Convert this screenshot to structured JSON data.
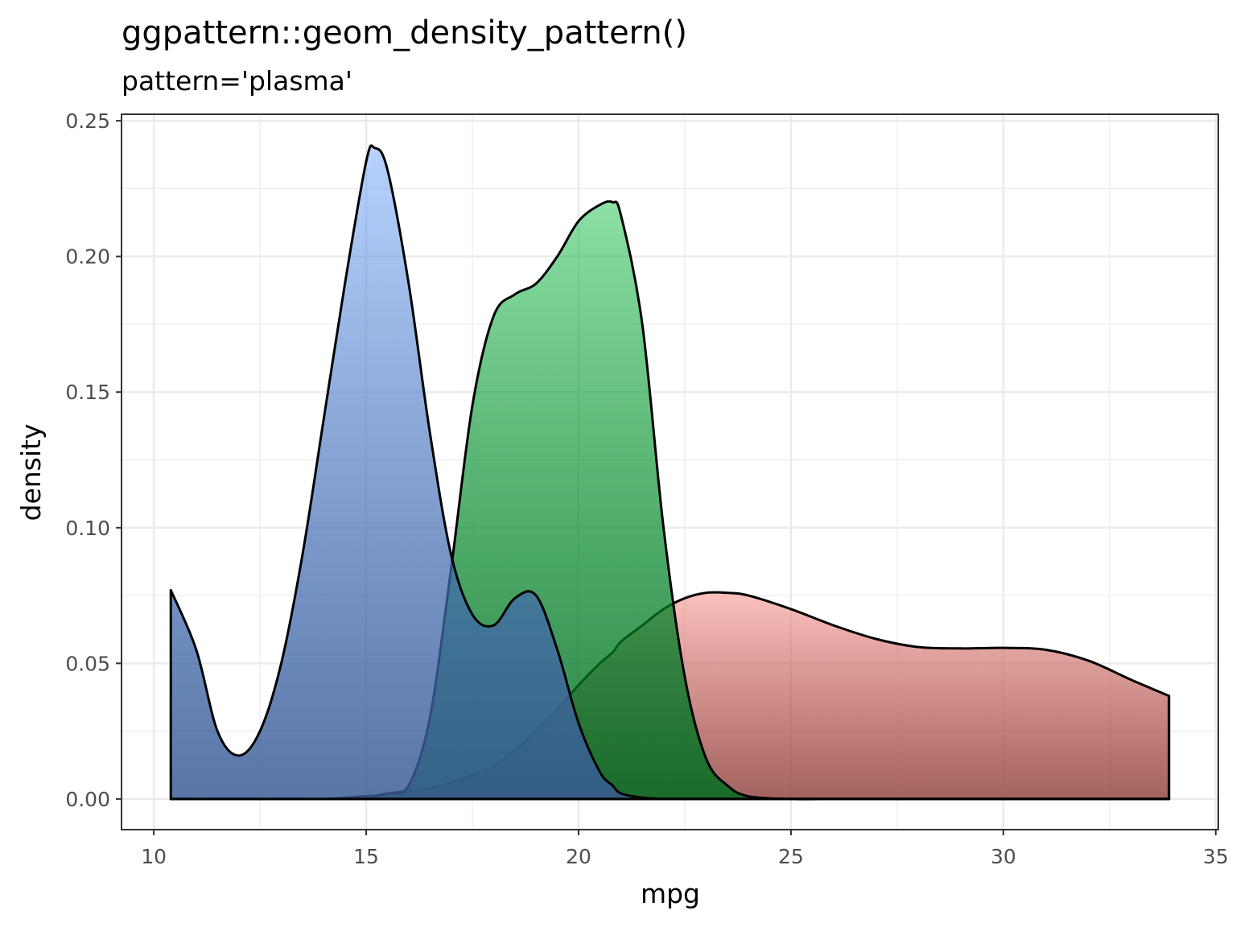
{
  "chart_data": {
    "type": "area",
    "title": "ggpattern::geom_density_pattern()",
    "subtitle": "pattern='plasma'",
    "x_label": "mpg",
    "y_label": "density",
    "x": [
      10.4,
      11,
      11.5,
      12,
      12.5,
      13,
      13.5,
      14,
      14.5,
      15,
      15.2,
      15.5,
      16,
      16.5,
      17,
      17.5,
      18,
      18.5,
      19,
      19.5,
      20,
      20.5,
      20.8,
      21,
      21.5,
      22,
      22.5,
      23,
      23.5,
      24,
      25,
      26,
      27,
      28,
      29,
      30,
      31,
      32,
      33,
      33.9
    ],
    "series": [
      {
        "color": "#F8766D",
        "values": [
          0,
          0,
          0,
          0,
          0,
          0,
          0,
          0,
          0.0005,
          0.001,
          0.0012,
          0.002,
          0.003,
          0.004,
          0.006,
          0.009,
          0.012,
          0.018,
          0.025,
          0.033,
          0.042,
          0.05,
          0.054,
          0.058,
          0.064,
          0.07,
          0.074,
          0.076,
          0.076,
          0.075,
          0.07,
          0.064,
          0.059,
          0.056,
          0.0555,
          0.0557,
          0.055,
          0.051,
          0.044,
          0.038
        ]
      },
      {
        "color": "#00BA38",
        "values": [
          0,
          0,
          0,
          0,
          0,
          0,
          0,
          0,
          0,
          0.0005,
          0.001,
          0.002,
          0.005,
          0.03,
          0.085,
          0.145,
          0.178,
          0.186,
          0.19,
          0.2,
          0.213,
          0.219,
          0.22,
          0.215,
          0.175,
          0.1,
          0.045,
          0.015,
          0.005,
          0.001,
          0,
          0,
          0,
          0,
          0,
          0,
          0,
          0,
          0,
          0
        ]
      },
      {
        "color": "#619CFF",
        "values": [
          0.077,
          0.055,
          0.025,
          0.016,
          0.025,
          0.05,
          0.09,
          0.14,
          0.19,
          0.235,
          0.24,
          0.232,
          0.19,
          0.135,
          0.09,
          0.068,
          0.064,
          0.074,
          0.075,
          0.055,
          0.028,
          0.01,
          0.005,
          0.002,
          0.0005,
          0,
          0,
          0,
          0,
          0,
          0,
          0,
          0,
          0,
          0,
          0,
          0,
          0,
          0,
          0
        ]
      }
    ],
    "xlim": [
      9.24,
      35.06
    ],
    "ylim": [
      -0.0113,
      0.2524
    ],
    "xticks": [
      10,
      15,
      20,
      25,
      30,
      35
    ],
    "yticks": [
      {
        "value": 0,
        "label": "0.00"
      },
      {
        "value": 0.05,
        "label": "0.05"
      },
      {
        "value": 0.1,
        "label": "0.10"
      },
      {
        "value": 0.15,
        "label": "0.15"
      },
      {
        "value": 0.2,
        "label": "0.20"
      },
      {
        "value": 0.25,
        "label": "0.25"
      }
    ],
    "grid": true
  }
}
